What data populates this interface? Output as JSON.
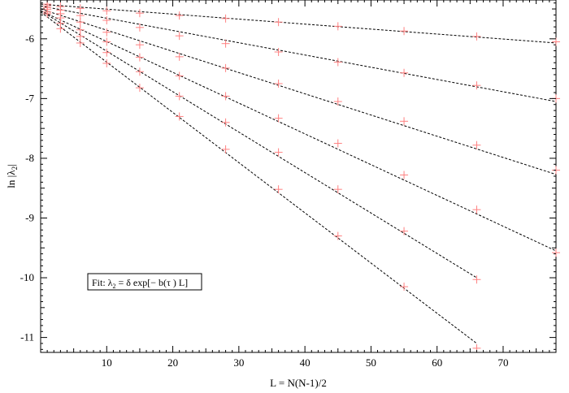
{
  "chart_data": {
    "type": "scatter",
    "xlabel": "L = N(N-1)/2",
    "ylabel_main": "ln |λ",
    "ylabel_sub": "2",
    "ylabel_end": "|",
    "xlim": [
      0,
      78
    ],
    "ylim": [
      -11.25,
      -5.35
    ],
    "xticks": [
      10,
      20,
      30,
      40,
      50,
      60,
      70
    ],
    "yticks": [
      -11,
      -10,
      -9,
      -8,
      -7,
      -6
    ],
    "grid": false,
    "annotation": {
      "pre": "Fit: λ",
      "sub": "2",
      "post": " = δ exp[− b(τ ) L]"
    },
    "colors": {
      "marker": "#ff8080",
      "fit_line": "#000000",
      "axis": "#000000"
    },
    "x": [
      1,
      3,
      6,
      10,
      15,
      21,
      28,
      36,
      45,
      55,
      66,
      78
    ],
    "series": [
      {
        "y": [
          -5.42,
          -5.46,
          -5.49,
          -5.53,
          -5.57,
          -5.61,
          -5.66,
          -5.72,
          -5.79,
          -5.87,
          -5.96,
          -6.05
        ],
        "fit": {
          "x0": 0,
          "y0": -5.42,
          "x1": 78,
          "y1": -6.07
        }
      },
      {
        "y": [
          -5.45,
          -5.52,
          -5.61,
          -5.69,
          -5.81,
          -5.95,
          -6.08,
          -6.22,
          -6.39,
          -6.57,
          -6.78,
          -7.0
        ],
        "fit": {
          "x0": 0,
          "y0": -5.45,
          "x1": 78,
          "y1": -7.05
        }
      },
      {
        "y": [
          -5.48,
          -5.58,
          -5.72,
          -5.89,
          -6.1,
          -6.3,
          -6.49,
          -6.75,
          -7.05,
          -7.38,
          -7.78,
          -8.2
        ],
        "fit": {
          "x0": 0,
          "y0": -5.5,
          "x1": 78,
          "y1": -8.27
        }
      },
      {
        "y": [
          -5.51,
          -5.65,
          -5.85,
          -6.05,
          -6.31,
          -6.62,
          -6.96,
          -7.33,
          -7.75,
          -8.28,
          -8.86,
          -9.58
        ],
        "fit": {
          "x0": 0,
          "y0": -5.53,
          "x1": 78,
          "y1": -9.55
        }
      },
      {
        "y": [
          -5.55,
          -5.74,
          -5.96,
          -6.23,
          -6.55,
          -6.96,
          -7.4,
          -7.9,
          -8.52,
          -9.22,
          -10.03
        ],
        "fit": {
          "x0": 0,
          "y0": -5.53,
          "x1": 66,
          "y1": -10.0
        }
      },
      {
        "y": [
          -5.58,
          -5.83,
          -6.07,
          -6.41,
          -6.82,
          -7.3,
          -7.85,
          -8.52,
          -9.3,
          -10.15,
          -11.18
        ],
        "fit": {
          "x0": 0,
          "y0": -5.55,
          "x1": 66,
          "y1": -11.1
        }
      }
    ]
  }
}
